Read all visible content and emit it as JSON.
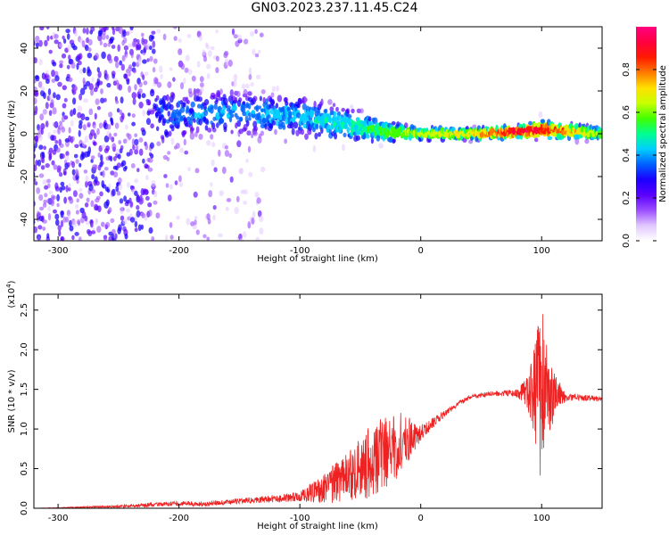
{
  "title": "GN03.2023.237.11.45.C24",
  "colors": {
    "snr_line": "#ee2222",
    "colormap": [
      "#ffffff",
      "#e2c7ff",
      "#9b4dff",
      "#5a00ff",
      "#1a00ff",
      "#0060ff",
      "#00d0ff",
      "#00ff90",
      "#40ff00",
      "#c8ff00",
      "#ffe000",
      "#ff7a00",
      "#ff1a00",
      "#ff0040",
      "#ff0080"
    ]
  },
  "chart_data": [
    {
      "type": "heatmap",
      "xlabel": "Height of straight line (km)",
      "ylabel": "Frequency (Hz)",
      "xlim": [
        -320,
        150
      ],
      "ylim": [
        -50,
        50
      ],
      "xticks": [
        -300,
        -200,
        -100,
        0,
        100
      ],
      "yticks": [
        -40,
        -20,
        0,
        20,
        40
      ],
      "colorbar": {
        "label": "Normalized spectral amplitude",
        "range": [
          0.0,
          1.0
        ],
        "ticks": [
          "0.0",
          "0.2",
          "0.4",
          "0.6",
          "0.8"
        ]
      },
      "description_points": [
        {
          "x": -320,
          "f_center": 0,
          "spread": 50,
          "amp": 0.15
        },
        {
          "x": -240,
          "f_center": 8,
          "spread": 25,
          "amp": 0.25
        },
        {
          "x": -200,
          "f_center": 9,
          "spread": 8,
          "amp": 0.35
        },
        {
          "x": -150,
          "f_center": 10,
          "spread": 7,
          "amp": 0.4
        },
        {
          "x": -100,
          "f_center": 8,
          "spread": 7,
          "amp": 0.42
        },
        {
          "x": -60,
          "f_center": 4,
          "spread": 6,
          "amp": 0.48
        },
        {
          "x": -30,
          "f_center": 1,
          "spread": 4,
          "amp": 0.55
        },
        {
          "x": 0,
          "f_center": 0,
          "spread": 2,
          "amp": 0.65
        },
        {
          "x": 50,
          "f_center": 0,
          "spread": 2,
          "amp": 0.75
        },
        {
          "x": 80,
          "f_center": 1,
          "spread": 2,
          "amp": 0.95
        },
        {
          "x": 100,
          "f_center": 2,
          "spread": 3,
          "amp": 0.9
        },
        {
          "x": 150,
          "f_center": 0,
          "spread": 2,
          "amp": 0.6
        }
      ]
    },
    {
      "type": "line",
      "xlabel": "Height of straight line (km)",
      "ylabel": "SNR (10 * v/v)",
      "y_multiplier": "(x10",
      "y_multiplier_exp": "4",
      "y_multiplier_close": ")",
      "xlim": [
        -320,
        150
      ],
      "ylim": [
        0,
        2.7
      ],
      "xticks": [
        -300,
        -200,
        -100,
        0,
        100
      ],
      "yticks": [
        "0.0",
        "0.5",
        "1.0",
        "1.5",
        "2.0",
        "2.5"
      ],
      "series": [
        {
          "x": [
            -320,
            -280,
            -240,
            -200,
            -180,
            -160,
            -140,
            -120,
            -100,
            -80,
            -60,
            -40,
            -20,
            0,
            20,
            40,
            60,
            80,
            90,
            100,
            110,
            120,
            130,
            150
          ],
          "y": [
            0.0,
            0.01,
            0.03,
            0.06,
            0.05,
            0.08,
            0.1,
            0.12,
            0.15,
            0.25,
            0.4,
            0.6,
            0.8,
            0.95,
            1.2,
            1.4,
            1.45,
            1.45,
            1.48,
            1.45,
            1.42,
            1.4,
            1.4,
            1.38
          ],
          "noise": [
            0.0,
            0.01,
            0.02,
            0.03,
            0.03,
            0.03,
            0.04,
            0.05,
            0.06,
            0.2,
            0.3,
            0.5,
            0.45,
            0.1,
            0.04,
            0.03,
            0.03,
            0.05,
            0.3,
            1.2,
            0.3,
            0.05,
            0.04,
            0.03
          ]
        }
      ]
    }
  ]
}
